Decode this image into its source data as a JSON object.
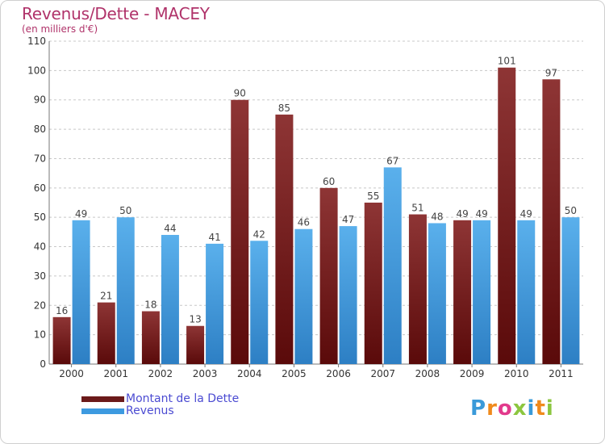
{
  "title": "Revenus/Dette - MACEY",
  "subtitle": "(en milliers d'€)",
  "logo": {
    "text": "Proxiti",
    "letter_colors": [
      "#3a9ad9",
      "#f08a1c",
      "#e23a8c",
      "#8cc63f",
      "#3a9ad9",
      "#f08a1c",
      "#8cc63f"
    ]
  },
  "colors": {
    "dette": "#6b1a1a",
    "revenus": "#3d9ae0",
    "grid": "#c8c8c8",
    "title": "#b0336a",
    "legend_text": "#4b4bd2"
  },
  "chart_data": {
    "type": "bar",
    "title": "Revenus/Dette - MACEY",
    "subtitle": "(en milliers d'€)",
    "categories": [
      "2000",
      "2001",
      "2002",
      "2003",
      "2004",
      "2005",
      "2006",
      "2007",
      "2008",
      "2009",
      "2010",
      "2011"
    ],
    "series": [
      {
        "name": "Montant de la Dette",
        "values": [
          16,
          21,
          18,
          13,
          90,
          85,
          60,
          55,
          51,
          49,
          101,
          97
        ]
      },
      {
        "name": "Revenus",
        "values": [
          49,
          50,
          44,
          41,
          42,
          46,
          47,
          67,
          48,
          49,
          49,
          50
        ]
      }
    ],
    "ylim": [
      0,
      110
    ],
    "yticks": [
      0,
      10,
      20,
      30,
      40,
      50,
      60,
      70,
      80,
      90,
      100,
      110
    ],
    "grid": true,
    "data_labels": true,
    "legend": "bottom-left"
  }
}
